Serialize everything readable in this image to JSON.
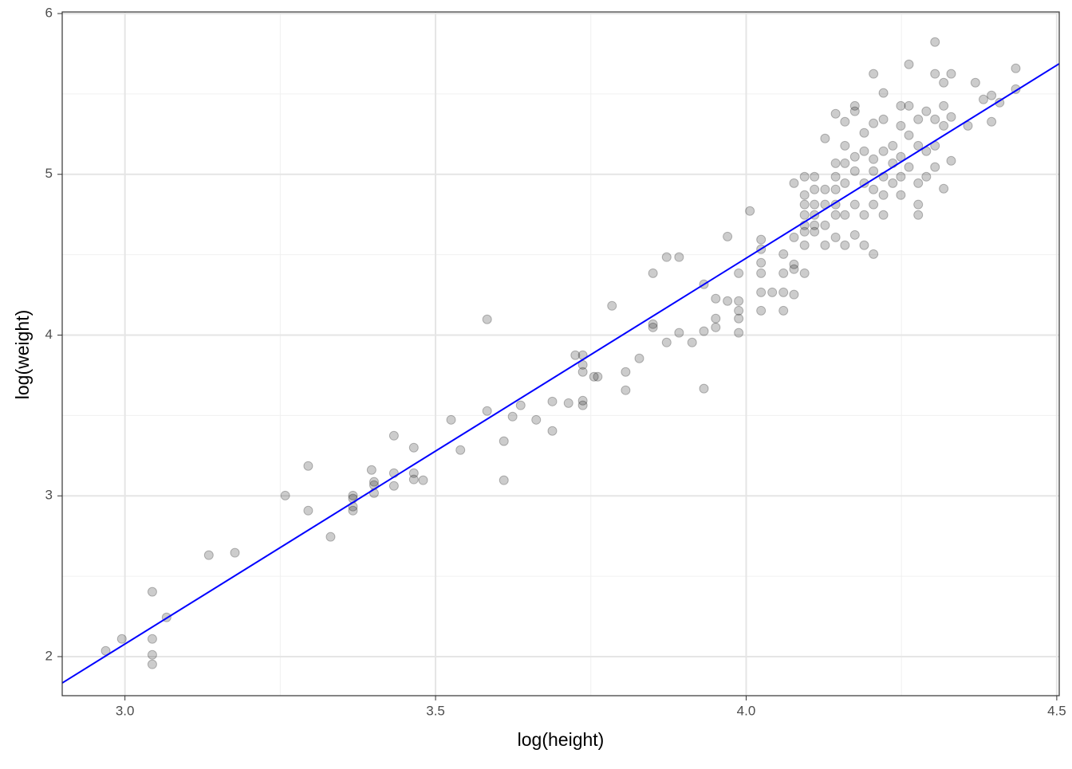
{
  "chart_data": {
    "type": "scatter",
    "xlabel": "log(height)",
    "ylabel": "log(weight)",
    "xlim": [
      2.899,
      4.504
    ],
    "ylim": [
      1.757,
      6.01
    ],
    "xticks": [
      {
        "value": 3,
        "label": "3.0"
      },
      3.5,
      {
        "value": 4,
        "label": "4.0"
      },
      4.5
    ],
    "yticks": [
      2,
      3,
      4,
      5,
      6
    ],
    "xminor": [
      3.25,
      3.75,
      4.25
    ],
    "yminor": [
      2.5,
      3.5,
      4.5,
      5.5
    ],
    "grid": true,
    "color": "#000000",
    "x": [
      2.969,
      2.995,
      3.044,
      3.044,
      3.044,
      3.044,
      3.067,
      3.135,
      3.177,
      3.258,
      3.295,
      3.295,
      3.331,
      3.367,
      3.367,
      3.367,
      3.367,
      3.397,
      3.401,
      3.401,
      3.401,
      3.433,
      3.433,
      3.433,
      3.465,
      3.465,
      3.465,
      3.48,
      3.525,
      3.54,
      3.583,
      3.583,
      3.61,
      3.61,
      3.624,
      3.637,
      3.662,
      3.688,
      3.688,
      3.714,
      3.725,
      3.737,
      3.737,
      3.737,
      3.737,
      3.737,
      3.755,
      3.761,
      3.784,
      3.806,
      3.806,
      3.828,
      3.85,
      3.85,
      3.85,
      3.872,
      3.872,
      3.892,
      3.892,
      3.913,
      3.932,
      3.932,
      3.932,
      3.951,
      3.951,
      3.951,
      3.97,
      3.97,
      3.988,
      3.988,
      3.988,
      3.988,
      3.988,
      4.006,
      4.024,
      4.024,
      4.024,
      4.024,
      4.024,
      4.024,
      4.042,
      4.06,
      4.06,
      4.06,
      4.06,
      4.077,
      4.077,
      4.077,
      4.077,
      4.077,
      4.094,
      4.094,
      4.094,
      4.094,
      4.094,
      4.094,
      4.094,
      4.094,
      4.11,
      4.11,
      4.11,
      4.11,
      4.11,
      4.11,
      4.127,
      4.127,
      4.127,
      4.127,
      4.127,
      4.144,
      4.144,
      4.144,
      4.144,
      4.144,
      4.144,
      4.144,
      4.159,
      4.159,
      4.159,
      4.159,
      4.159,
      4.159,
      4.175,
      4.175,
      4.175,
      4.175,
      4.175,
      4.175,
      4.19,
      4.19,
      4.19,
      4.19,
      4.19,
      4.205,
      4.205,
      4.205,
      4.205,
      4.205,
      4.205,
      4.205,
      4.221,
      4.221,
      4.221,
      4.221,
      4.221,
      4.221,
      4.236,
      4.236,
      4.236,
      4.249,
      4.249,
      4.249,
      4.249,
      4.249,
      4.262,
      4.262,
      4.262,
      4.262,
      4.277,
      4.277,
      4.277,
      4.277,
      4.277,
      4.29,
      4.29,
      4.29,
      4.304,
      4.304,
      4.304,
      4.304,
      4.304,
      4.318,
      4.318,
      4.318,
      4.318,
      4.33,
      4.33,
      4.33,
      4.357,
      4.369,
      4.382,
      4.395,
      4.408,
      4.395,
      4.434,
      4.434
    ],
    "values": [
      2.036,
      2.11,
      2.403,
      2.11,
      2.011,
      1.952,
      2.244,
      2.631,
      2.646,
      3.002,
      3.186,
      2.908,
      2.745,
      3.002,
      2.983,
      2.933,
      2.908,
      3.161,
      3.087,
      3.067,
      3.017,
      3.374,
      3.141,
      3.062,
      3.3,
      3.141,
      3.102,
      3.097,
      3.473,
      3.285,
      4.098,
      3.528,
      3.34,
      3.097,
      3.493,
      3.563,
      3.473,
      3.587,
      3.404,
      3.577,
      3.875,
      3.875,
      3.815,
      3.771,
      3.592,
      3.563,
      3.741,
      3.741,
      4.182,
      3.771,
      3.657,
      3.855,
      4.385,
      4.068,
      4.048,
      4.485,
      3.954,
      4.485,
      4.014,
      3.954,
      4.316,
      4.024,
      3.667,
      4.227,
      4.103,
      4.048,
      4.613,
      4.212,
      4.212,
      4.152,
      4.103,
      4.014,
      4.385,
      4.772,
      4.594,
      4.534,
      4.45,
      4.385,
      4.266,
      4.152,
      4.266,
      4.504,
      4.385,
      4.266,
      4.152,
      4.44,
      4.41,
      4.252,
      4.608,
      4.945,
      4.385,
      4.985,
      4.871,
      4.812,
      4.747,
      4.683,
      4.643,
      4.559,
      4.985,
      4.906,
      4.812,
      4.747,
      4.683,
      4.643,
      5.223,
      4.906,
      4.812,
      4.683,
      4.559,
      5.377,
      5.069,
      4.985,
      4.906,
      4.812,
      4.747,
      4.608,
      5.327,
      5.178,
      5.069,
      4.945,
      4.747,
      4.559,
      5.426,
      5.392,
      5.109,
      5.02,
      4.812,
      4.623,
      5.258,
      5.144,
      4.945,
      4.747,
      4.559,
      5.625,
      5.317,
      5.094,
      5.02,
      4.906,
      4.812,
      4.504,
      5.506,
      5.342,
      5.144,
      4.985,
      4.871,
      4.747,
      5.178,
      5.069,
      4.945,
      5.426,
      5.302,
      5.109,
      4.985,
      4.871,
      5.684,
      5.426,
      5.243,
      5.045,
      5.342,
      5.178,
      4.945,
      4.812,
      4.747,
      5.392,
      5.144,
      4.985,
      5.823,
      5.625,
      5.342,
      5.178,
      5.045,
      5.57,
      5.426,
      5.302,
      4.911,
      5.625,
      5.357,
      5.084,
      5.302,
      5.57,
      5.466,
      5.491,
      5.446,
      5.327,
      5.659,
      5.53
    ],
    "fit": {
      "x": [
        2.899,
        4.504
      ],
      "values": [
        1.836,
        5.688
      ],
      "color": "#0000ff"
    }
  }
}
